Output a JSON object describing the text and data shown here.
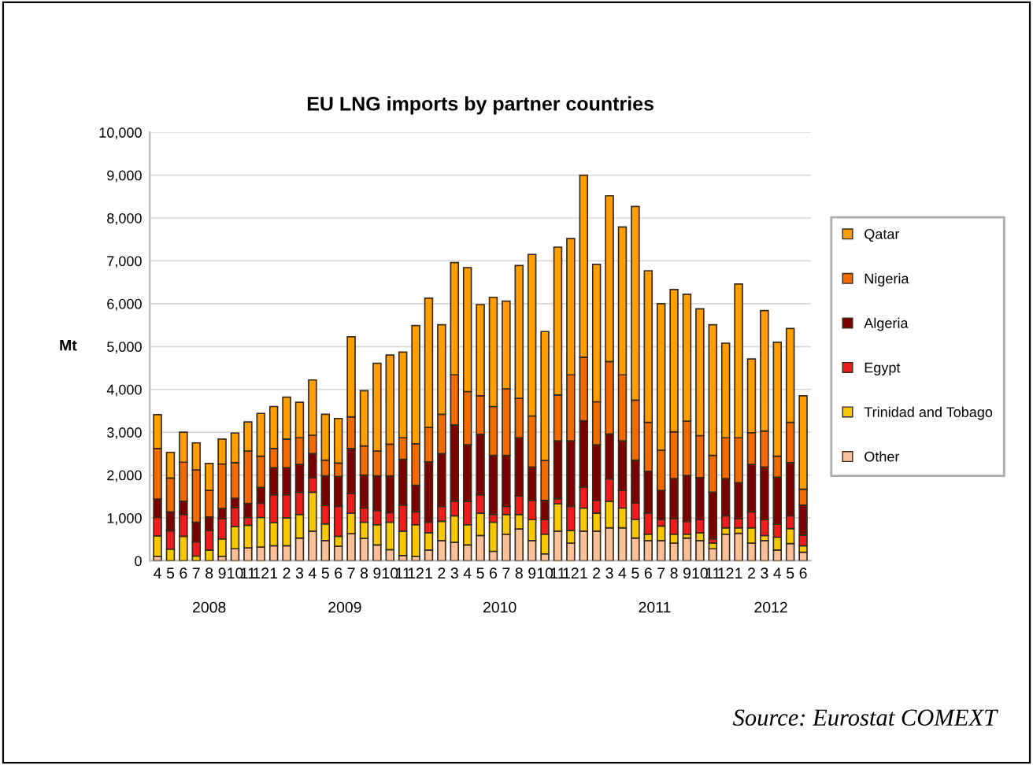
{
  "chart_data": {
    "type": "bar",
    "stacked": true,
    "title": "EU LNG imports by partner countries",
    "ylabel": "Mt",
    "categories": [
      "4",
      "5",
      "6",
      "7",
      "8",
      "9",
      "10",
      "11",
      "12",
      "1",
      "2",
      "3",
      "4",
      "5",
      "6",
      "7",
      "8",
      "9",
      "10",
      "11",
      "12",
      "1",
      "2",
      "3",
      "4",
      "5",
      "6",
      "7",
      "8",
      "9",
      "10",
      "11",
      "12",
      "1",
      "2",
      "3",
      "4",
      "5",
      "6",
      "7",
      "8",
      "9",
      "10",
      "11",
      "12",
      "1",
      "2",
      "3",
      "4",
      "5",
      "6"
    ],
    "series": [
      {
        "name": "Other",
        "color": "#f9c09a",
        "values": [
          100,
          null,
          null,
          null,
          null,
          100,
          280,
          300,
          320,
          350,
          350,
          530,
          690,
          470,
          340,
          630,
          520,
          370,
          260,
          120,
          100,
          250,
          470,
          430,
          370,
          590,
          220,
          620,
          740,
          470,
          160,
          690,
          410,
          690,
          690,
          770,
          770,
          530,
          470,
          470,
          410,
          530,
          470,
          280,
          620,
          640,
          410,
          470,
          250,
          400,
          200
        ]
      },
      {
        "name": "Trinidad and Tobago",
        "color": "#f5c800",
        "values": [
          480,
          270,
          570,
          110,
          250,
          410,
          520,
          530,
          690,
          540,
          650,
          550,
          910,
          390,
          230,
          480,
          380,
          470,
          640,
          570,
          740,
          400,
          450,
          620,
          470,
          520,
          680,
          460,
          340,
          490,
          460,
          640,
          300,
          540,
          420,
          620,
          460,
          430,
          150,
          340,
          210,
          90,
          180,
          130,
          150,
          130,
          360,
          120,
          300,
          350,
          150
        ]
      },
      {
        "name": "Egypt",
        "color": "#ee1c1c",
        "values": [
          430,
          430,
          510,
          330,
          460,
          470,
          440,
          180,
          330,
          650,
          540,
          520,
          340,
          430,
          700,
          460,
          330,
          330,
          220,
          610,
          300,
          250,
          350,
          340,
          550,
          430,
          180,
          190,
          430,
          450,
          340,
          120,
          560,
          490,
          300,
          520,
          410,
          390,
          490,
          150,
          360,
          300,
          310,
          100,
          280,
          210,
          370,
          370,
          300,
          300,
          250
        ]
      },
      {
        "name": "Algeria",
        "color": "#7b0000",
        "values": [
          430,
          440,
          310,
          460,
          310,
          240,
          220,
          330,
          370,
          630,
          630,
          650,
          560,
          690,
          700,
          1050,
          770,
          810,
          860,
          1070,
          620,
          1410,
          1230,
          1780,
          1320,
          1410,
          1380,
          1190,
          1360,
          780,
          450,
          1350,
          1530,
          1550,
          1300,
          1050,
          1160,
          1000,
          980,
          680,
          940,
          1070,
          980,
          1090,
          870,
          840,
          1110,
          1230,
          1100,
          1240,
          700
        ]
      },
      {
        "name": "Nigeria",
        "color": "#f26b00",
        "values": [
          1180,
          790,
          910,
          1220,
          620,
          1040,
          830,
          1220,
          730,
          450,
          670,
          620,
          430,
          370,
          310,
          740,
          680,
          580,
          740,
          500,
          970,
          800,
          920,
          1170,
          1240,
          900,
          1140,
          1550,
          920,
          1190,
          930,
          1070,
          1540,
          1480,
          1000,
          1690,
          1540,
          1400,
          1140,
          940,
          1090,
          1270,
          980,
          860,
          950,
          1050,
          740,
          840,
          490,
          940,
          370
        ]
      },
      {
        "name": "Qatar",
        "color": "#ff9e00",
        "values": [
          790,
          600,
          700,
          630,
          630,
          580,
          690,
          680,
          1000,
          980,
          980,
          830,
          1290,
          1070,
          1040,
          1870,
          1290,
          2050,
          2080,
          2000,
          2760,
          3020,
          2090,
          2620,
          2890,
          2130,
          2550,
          2050,
          3100,
          3770,
          3010,
          3450,
          3180,
          4250,
          3210,
          3870,
          3450,
          4520,
          3540,
          3420,
          3320,
          2960,
          2960,
          3050,
          2210,
          3590,
          1720,
          2810,
          2660,
          2190,
          2180
        ]
      }
    ],
    "ylim": [
      0,
      10000
    ],
    "yticks": [
      {
        "value": 0,
        "label": "0"
      },
      {
        "value": 1000,
        "label": "1,000"
      },
      {
        "value": 2000,
        "label": "2,000"
      },
      {
        "value": 3000,
        "label": "3,000"
      },
      {
        "value": 4000,
        "label": "4,000"
      },
      {
        "value": 5000,
        "label": "5,000"
      },
      {
        "value": 6000,
        "label": "6,000"
      },
      {
        "value": 7000,
        "label": "7,000"
      },
      {
        "value": 8000,
        "label": "8,000"
      },
      {
        "value": 9000,
        "label": "9,000"
      },
      {
        "value": 10000,
        "label": "10,000"
      }
    ],
    "grid": "y",
    "legend": "right",
    "annotations": [
      "2008",
      "2009",
      "2010",
      "2011",
      "2012",
      "Source: Eurostat COMEXT"
    ]
  }
}
